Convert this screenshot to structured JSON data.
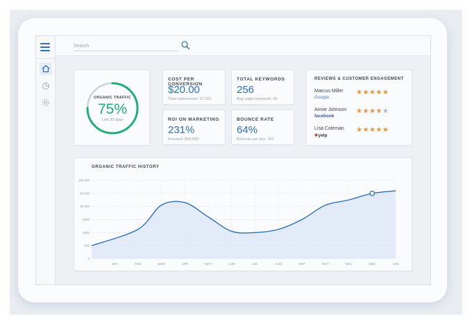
{
  "search": {
    "placeholder": "Search"
  },
  "sidebar": {
    "icons": [
      "menu-icon",
      "home-icon",
      "pie-chart-icon",
      "gear-icon"
    ]
  },
  "organic_traffic": {
    "title": "ORGANIC TRAFFIC",
    "value": "75%",
    "period": "Last 30 days",
    "progress": 0.75,
    "ring_color": "#1fae77",
    "track_color": "#c8d2dc"
  },
  "kpis": {
    "cost_per_conversion": {
      "title": "COST PER CONVERSION",
      "value": "$20.00",
      "sub": "Total conversions: 12 162"
    },
    "total_keywords": {
      "title": "TOTAL KEYWORDS",
      "value": "256",
      "sub": "Avg. page keywords: 43"
    },
    "roi": {
      "title": "ROI ON MARKETING",
      "value": "231%",
      "sub": "Invested: $10,000"
    },
    "bounce_rate": {
      "title": "BOUNCE RATE",
      "value": "64%",
      "sub": "Bounces per day: 152"
    }
  },
  "reviews": {
    "title": "REVIEWS & CUSTOMER ENGAGEMENT",
    "items": [
      {
        "name": "Marcus Miller",
        "source": "Google",
        "rating": 5
      },
      {
        "name": "Annie Johnson",
        "source": "facebook",
        "rating": 4
      },
      {
        "name": "Lisa Coleman",
        "source": "yelp",
        "rating": 5
      }
    ],
    "star_color": "#e8963b",
    "empty_star_color": "#a9bdd3"
  },
  "accent_color": "#2c6fb5",
  "chart_data": {
    "type": "area",
    "title": "ORGANIC TRAFFIC HISTORY",
    "y_ticks": [
      "0",
      "500",
      "1000",
      "5000",
      "10 000",
      "50 000",
      "100 000"
    ],
    "categories": [
      "JAN",
      "FEB",
      "MAR",
      "APR",
      "MAY",
      "JUN",
      "JUL",
      "AUG",
      "SEP",
      "OCT",
      "NOV",
      "DEC",
      "JAN"
    ],
    "values": [
      500,
      2000,
      14000,
      22000,
      6000,
      1400,
      1000,
      2000,
      5000,
      14000,
      30000,
      50000,
      60000
    ],
    "highlight_index": 11,
    "grid": true,
    "line_color": "#2c6fb5",
    "fill_color": "#dce7f5"
  }
}
